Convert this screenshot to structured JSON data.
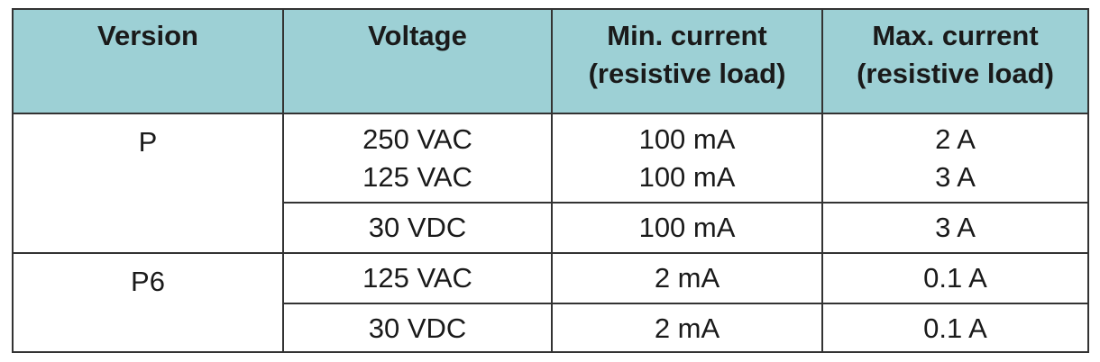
{
  "table": {
    "header": [
      [
        "Version"
      ],
      [
        "Voltage"
      ],
      [
        "Min. current",
        "(resistive load)"
      ],
      [
        "Max. current",
        "(resistive load)"
      ]
    ],
    "groups": [
      {
        "version": "P",
        "rows": [
          [
            [
              "250 VAC",
              "125 VAC"
            ],
            [
              "100 mA",
              "100 mA"
            ],
            [
              "2 A",
              "3 A"
            ]
          ],
          [
            [
              "30 VDC"
            ],
            [
              "100 mA"
            ],
            [
              "3 A"
            ]
          ]
        ]
      },
      {
        "version": "P6",
        "rows": [
          [
            [
              "125 VAC"
            ],
            [
              "2 mA"
            ],
            [
              "0.1 A"
            ]
          ],
          [
            [
              "30 VDC"
            ],
            [
              "2 mA"
            ],
            [
              "0.1 A"
            ]
          ]
        ]
      }
    ]
  }
}
